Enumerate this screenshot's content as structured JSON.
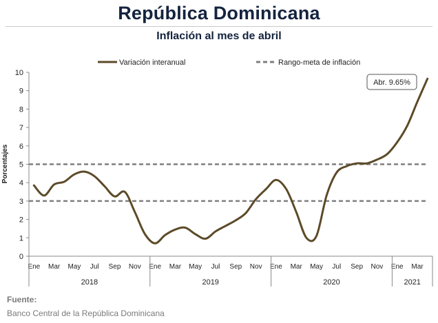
{
  "header": {
    "title": "República Dominicana",
    "subtitle": "Inflación al mes de abril"
  },
  "source": {
    "label": "Fuente:",
    "text": "Banco Central de la República Dominicana"
  },
  "colors": {
    "series_line": "#5c4a28",
    "target_line": "#7f7f7f",
    "title": "#14233f"
  },
  "chart_data": {
    "type": "line",
    "ylabel": "Porcentajes",
    "ylim": [
      0,
      10
    ],
    "yticks": [
      "0",
      "1",
      "2",
      "3",
      "4",
      "5",
      "6",
      "7",
      "8",
      "9",
      "10"
    ],
    "grid": false,
    "legend_position": "top",
    "legend": {
      "series_label": "Variación interanual",
      "target_label": "Rango-meta de inflación"
    },
    "month_labels": [
      "Ene",
      "Mar",
      "May",
      "Jul",
      "Sep",
      "Nov",
      "Ene",
      "Mar",
      "May",
      "Jul",
      "Sep",
      "Nov",
      "Ene",
      "Mar",
      "May",
      "Jul",
      "Sep",
      "Nov",
      "Ene",
      "Mar"
    ],
    "years": [
      {
        "label": "2018",
        "start": 0,
        "end": 12
      },
      {
        "label": "2019",
        "start": 12,
        "end": 24
      },
      {
        "label": "2020",
        "start": 24,
        "end": 36
      },
      {
        "label": "2021",
        "start": 36,
        "end": 40
      }
    ],
    "target_range": [
      3,
      5
    ],
    "series": [
      {
        "name": "Variación interanual",
        "x": [
          "2018-01",
          "2018-02",
          "2018-03",
          "2018-04",
          "2018-05",
          "2018-06",
          "2018-07",
          "2018-08",
          "2018-09",
          "2018-10",
          "2018-11",
          "2018-12",
          "2019-01",
          "2019-02",
          "2019-03",
          "2019-04",
          "2019-05",
          "2019-06",
          "2019-07",
          "2019-08",
          "2019-09",
          "2019-10",
          "2019-11",
          "2019-12",
          "2020-01",
          "2020-02",
          "2020-03",
          "2020-04",
          "2020-05",
          "2020-06",
          "2020-07",
          "2020-08",
          "2020-09",
          "2020-10",
          "2020-11",
          "2020-12",
          "2021-01",
          "2021-02",
          "2021-03",
          "2021-04"
        ],
        "values": [
          3.85,
          3.3,
          3.9,
          4.05,
          4.45,
          4.6,
          4.35,
          3.8,
          3.25,
          3.5,
          2.4,
          1.2,
          0.7,
          1.15,
          1.45,
          1.55,
          1.2,
          0.95,
          1.35,
          1.65,
          1.95,
          2.35,
          3.1,
          3.65,
          4.15,
          3.65,
          2.4,
          1.0,
          1.1,
          3.3,
          4.55,
          4.9,
          5.05,
          5.05,
          5.25,
          5.55,
          6.2,
          7.1,
          8.4,
          9.65
        ]
      }
    ],
    "annotation": "Abr. 9.65%"
  }
}
